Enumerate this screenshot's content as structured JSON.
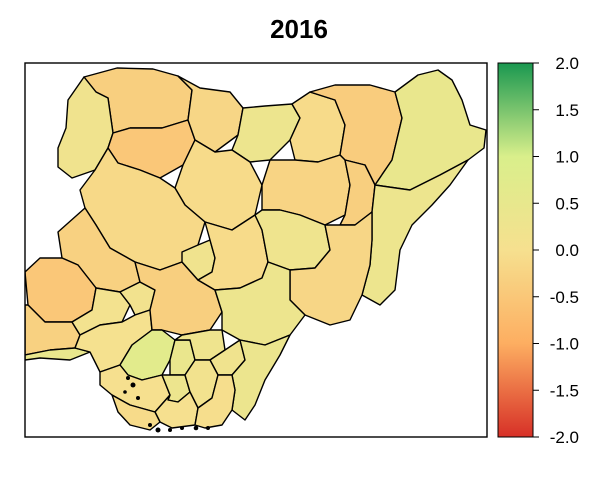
{
  "title": "2016",
  "colorbar": {
    "min": -2.0,
    "max": 2.0,
    "ticks": [
      "2.0",
      "1.5",
      "1.0",
      "0.5",
      "0.0",
      "-0.5",
      "-1.0",
      "-1.5",
      "-2.0"
    ],
    "tick_values": [
      2.0,
      1.5,
      1.0,
      0.5,
      0.0,
      -0.5,
      -1.0,
      -1.5,
      -2.0
    ],
    "colors": {
      "low": "#d73027",
      "mid_low": "#fdae61",
      "mid": "#f6e08f",
      "mid_high": "#d9ef8b",
      "high": "#1a9850"
    }
  },
  "map": {
    "country": "Nigeria",
    "regions": [
      {
        "id": "sokoto",
        "value": -0.35
      },
      {
        "id": "kebbi",
        "value": 0.2
      },
      {
        "id": "zamfara",
        "value": -0.5
      },
      {
        "id": "katsina",
        "value": -0.2
      },
      {
        "id": "kano",
        "value": 0.3
      },
      {
        "id": "jigawa",
        "value": -0.1
      },
      {
        "id": "yobe",
        "value": -0.4
      },
      {
        "id": "borno",
        "value": 0.45
      },
      {
        "id": "kaduna",
        "value": -0.1
      },
      {
        "id": "bauchi",
        "value": -0.25
      },
      {
        "id": "gombe",
        "value": -0.35
      },
      {
        "id": "adamawa",
        "value": 0.3
      },
      {
        "id": "niger",
        "value": -0.15
      },
      {
        "id": "kwara",
        "value": -0.3
      },
      {
        "id": "oyo",
        "value": -0.5
      },
      {
        "id": "ogun",
        "value": -0.3
      },
      {
        "id": "lagos",
        "value": 0.45
      },
      {
        "id": "osun",
        "value": 0.1
      },
      {
        "id": "ekiti",
        "value": 0.15
      },
      {
        "id": "ondo",
        "value": 0.05
      },
      {
        "id": "kogi",
        "value": -0.35
      },
      {
        "id": "fct",
        "value": 0.2
      },
      {
        "id": "nasarawa",
        "value": -0.1
      },
      {
        "id": "plateau",
        "value": 0.25
      },
      {
        "id": "taraba",
        "value": -0.2
      },
      {
        "id": "benue",
        "value": 0.3
      },
      {
        "id": "edo",
        "value": 0.7
      },
      {
        "id": "delta",
        "value": 0.0
      },
      {
        "id": "anambra",
        "value": 0.4
      },
      {
        "id": "enugu",
        "value": 0.25
      },
      {
        "id": "ebonyi",
        "value": 0.2
      },
      {
        "id": "cross-river",
        "value": 0.35
      },
      {
        "id": "imo",
        "value": 0.3
      },
      {
        "id": "abia",
        "value": 0.15
      },
      {
        "id": "rivers",
        "value": 0.0
      },
      {
        "id": "bayelsa",
        "value": -0.1
      },
      {
        "id": "akwa-ibom",
        "value": -0.05
      }
    ]
  }
}
